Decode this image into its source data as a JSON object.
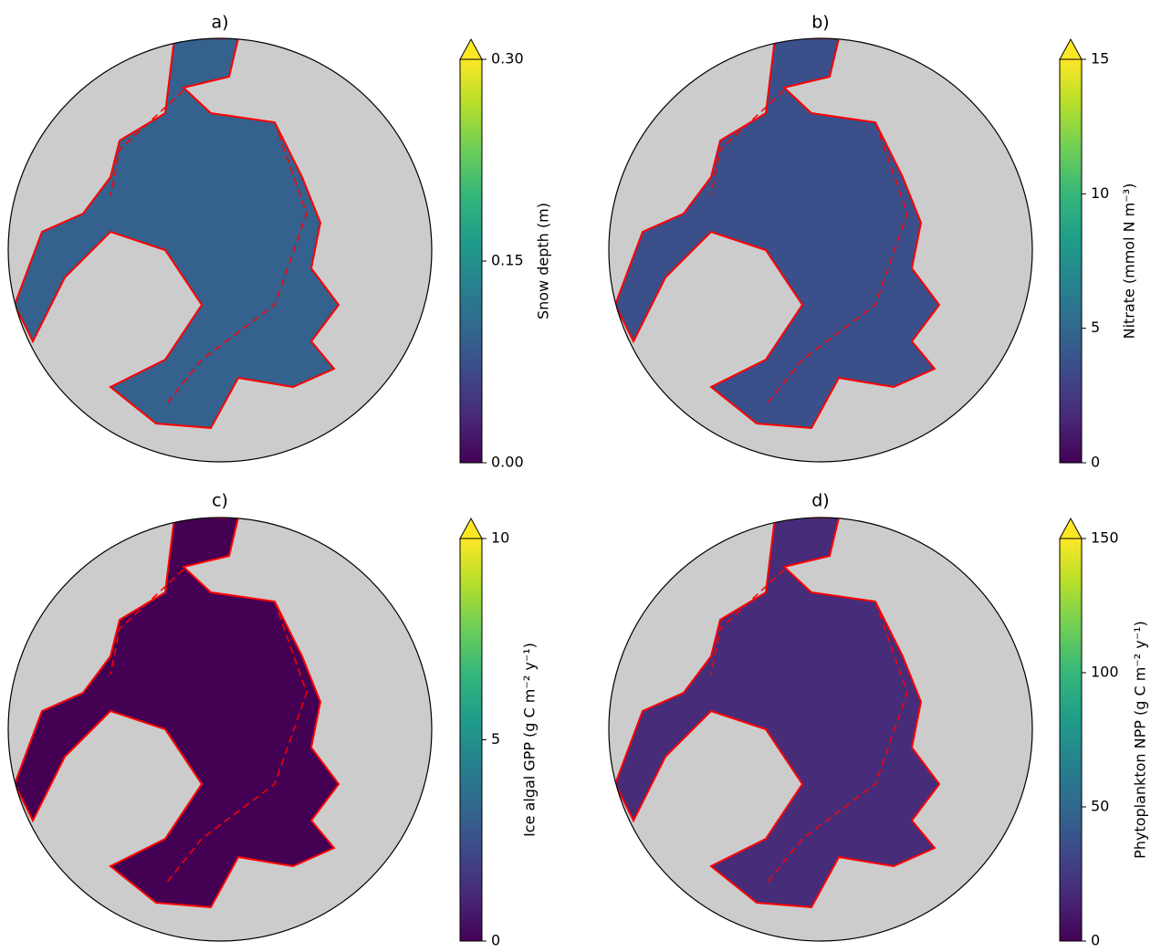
{
  "chart_data": [
    {
      "type": "map",
      "title": "a)",
      "colorbar_label": "Snow depth (m)",
      "colormap": "viridis",
      "extend": "max",
      "clim": [
        0,
        0.3
      ],
      "cticks": [
        {
          "value": 0,
          "label": "0.00"
        },
        0.15,
        {
          "value": 0.3,
          "label": "0.30"
        }
      ]
    },
    {
      "type": "map",
      "title": "b)",
      "colorbar_label": "Nitrate (mmol N m⁻³)",
      "colormap": "viridis",
      "extend": "max",
      "clim": [
        0,
        15
      ],
      "cticks": [
        0,
        5,
        10,
        15
      ]
    },
    {
      "type": "map",
      "title": "c)",
      "colorbar_label": "Ice algal GPP (g C m⁻² y⁻¹)",
      "colormap": "viridis",
      "extend": "max",
      "clim": [
        0,
        10
      ],
      "cticks": [
        0,
        5,
        10
      ]
    },
    {
      "type": "map",
      "title": "d)",
      "colorbar_label": "Phytoplankton NPP (g C m⁻² y⁻¹)",
      "colormap": "viridis",
      "extend": "max",
      "clim": [
        0,
        150
      ],
      "cticks": [
        0,
        50,
        100,
        150
      ]
    }
  ]
}
